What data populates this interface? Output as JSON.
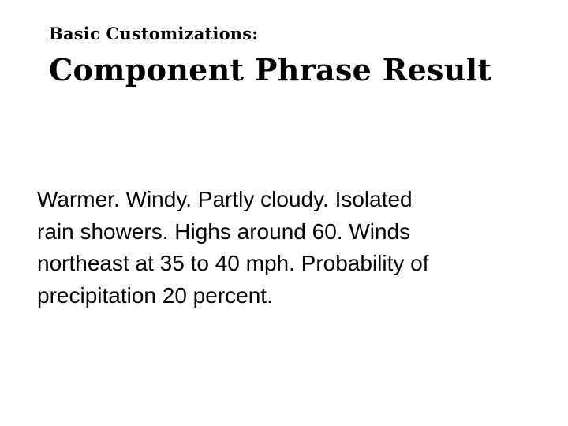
{
  "slide": {
    "subtitle": "Basic Customizations:",
    "title": "Component Phrase Result",
    "body_lines": [
      "Warmer. Windy. Partly cloudy. Isolated",
      "rain showers. Highs around 60. Winds",
      "northeast at 35 to 40 mph. Probability of",
      "precipitation 20 percent."
    ]
  }
}
